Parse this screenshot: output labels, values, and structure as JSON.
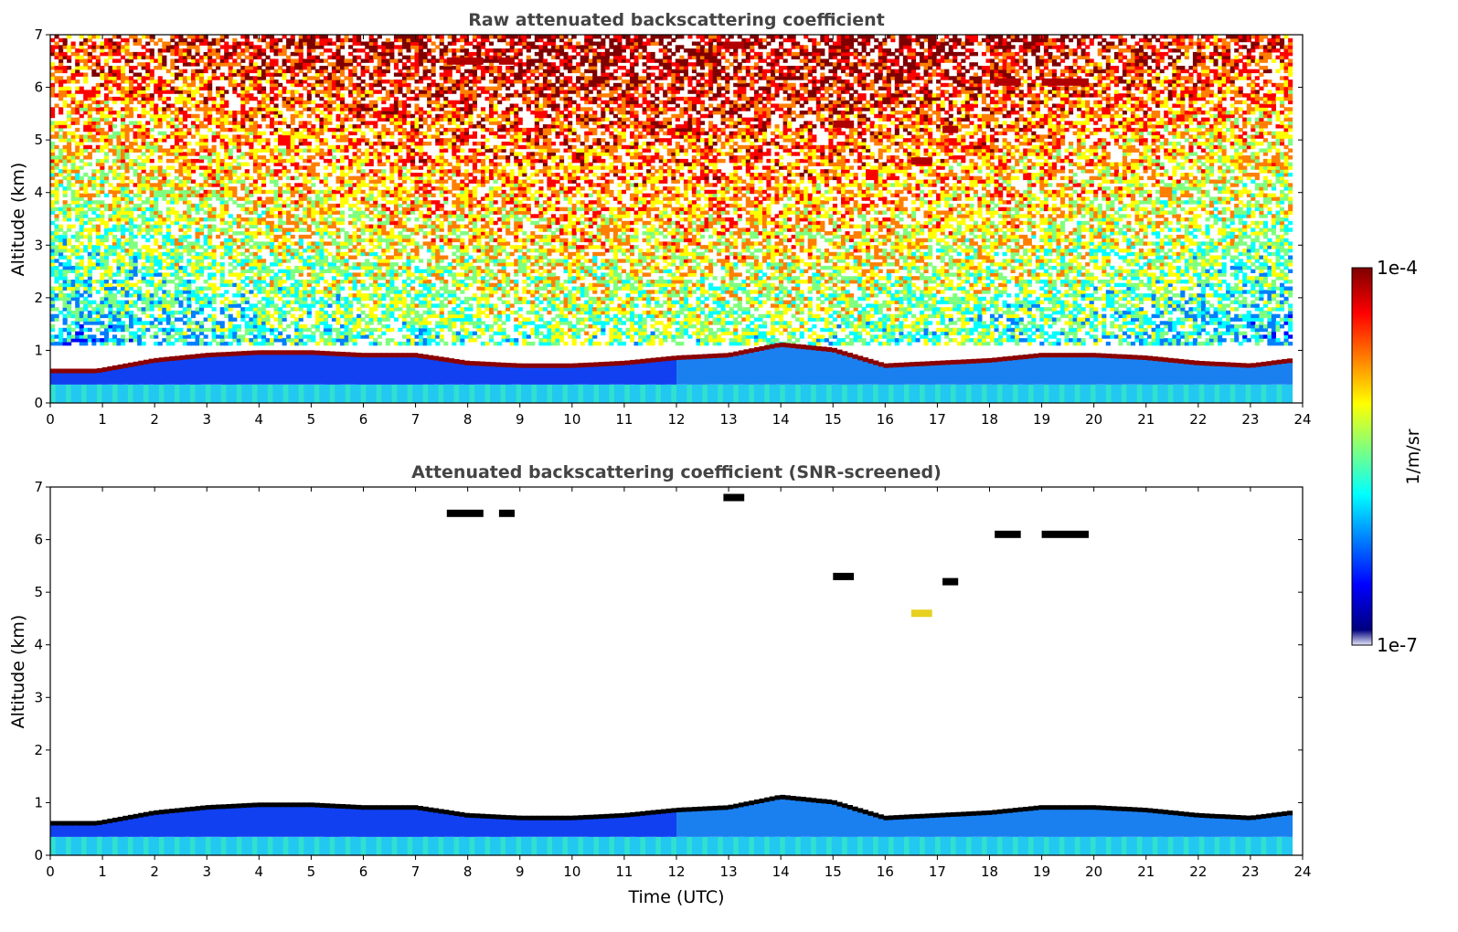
{
  "colors": {
    "jet": [
      "#00007f",
      "#0000ff",
      "#007fff",
      "#00ffff",
      "#7fff7f",
      "#ffff00",
      "#ff7f00",
      "#ff0000",
      "#7f0000"
    ],
    "low": "#e6e6fa",
    "cloud_top": "#000000"
  },
  "chart_data": [
    {
      "type": "heatmap",
      "title": "Raw attenuated backscattering coefficient",
      "xlabel": "",
      "ylabel": "Altitude (km)",
      "xlim": [
        0,
        24
      ],
      "ylim": [
        0,
        7
      ],
      "xticks": [
        "0",
        "1",
        "2",
        "3",
        "4",
        "5",
        "6",
        "7",
        "8",
        "9",
        "10",
        "11",
        "12",
        "13",
        "14",
        "15",
        "16",
        "17",
        "18",
        "19",
        "20",
        "21",
        "22",
        "23",
        "24"
      ],
      "yticks": [
        "0",
        "1",
        "2",
        "3",
        "4",
        "5",
        "6",
        "7"
      ],
      "boundary_layer_top_km": [
        {
          "t": 0.9,
          "z": 0.6
        },
        {
          "t": 2,
          "z": 0.8
        },
        {
          "t": 3,
          "z": 0.9
        },
        {
          "t": 4,
          "z": 0.95
        },
        {
          "t": 5,
          "z": 0.95
        },
        {
          "t": 6,
          "z": 0.9
        },
        {
          "t": 7,
          "z": 0.9
        },
        {
          "t": 8,
          "z": 0.75
        },
        {
          "t": 9,
          "z": 0.7
        },
        {
          "t": 10,
          "z": 0.7
        },
        {
          "t": 11,
          "z": 0.75
        },
        {
          "t": 12,
          "z": 0.85
        },
        {
          "t": 13,
          "z": 0.9
        },
        {
          "t": 14,
          "z": 1.1
        },
        {
          "t": 15,
          "z": 1.0
        },
        {
          "t": 16,
          "z": 0.7
        },
        {
          "t": 17,
          "z": 0.75
        },
        {
          "t": 18,
          "z": 0.8
        },
        {
          "t": 19,
          "z": 0.9
        },
        {
          "t": 20,
          "z": 0.9
        },
        {
          "t": 21,
          "z": 0.85
        },
        {
          "t": 22,
          "z": 0.75
        },
        {
          "t": 23,
          "z": 0.7
        },
        {
          "t": 23.8,
          "z": 0.8
        }
      ],
      "high_cloud_patches": [
        {
          "t0": 7.6,
          "t1": 8.3,
          "z": 6.5
        },
        {
          "t0": 8.6,
          "t1": 8.9,
          "z": 6.5
        },
        {
          "t0": 12.9,
          "t1": 13.3,
          "z": 6.8
        },
        {
          "t0": 15.0,
          "t1": 15.4,
          "z": 5.3
        },
        {
          "t0": 16.5,
          "t1": 16.9,
          "z": 4.6
        },
        {
          "t0": 18.1,
          "t1": 18.6,
          "z": 6.1
        },
        {
          "t0": 19.0,
          "t1": 19.9,
          "z": 6.1
        },
        {
          "t0": 17.1,
          "t1": 17.4,
          "z": 5.2
        }
      ]
    },
    {
      "type": "heatmap",
      "title": "Attenuated backscattering coefficient (SNR-screened)",
      "xlabel": "Time (UTC)",
      "ylabel": "Altitude (km)",
      "xlim": [
        0,
        24
      ],
      "ylim": [
        0,
        7
      ],
      "xticks": [
        "0",
        "1",
        "2",
        "3",
        "4",
        "5",
        "6",
        "7",
        "8",
        "9",
        "10",
        "11",
        "12",
        "13",
        "14",
        "15",
        "16",
        "17",
        "18",
        "19",
        "20",
        "21",
        "22",
        "23",
        "24"
      ],
      "yticks": [
        "0",
        "1",
        "2",
        "3",
        "4",
        "5",
        "6",
        "7"
      ]
    }
  ],
  "colorbar": {
    "max_label": "1e-4",
    "min_label": "1e-7",
    "unit_label": "1/m/sr",
    "scale": "log"
  }
}
